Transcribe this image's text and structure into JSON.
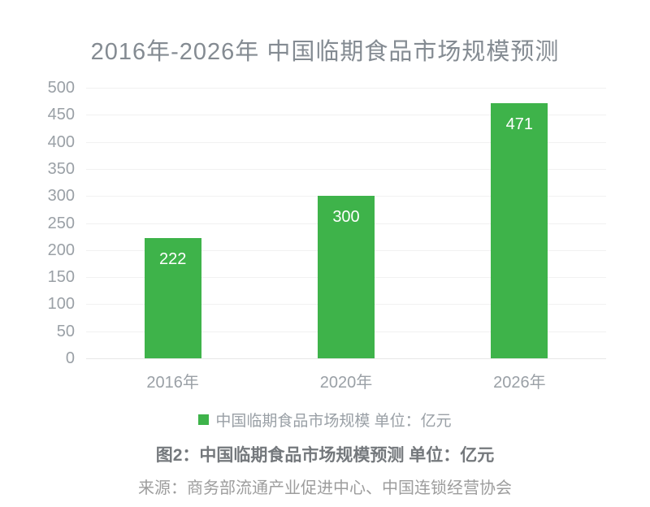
{
  "title": "2016年-2026年 中国临期食品市场规模预测",
  "chart_data": {
    "type": "bar",
    "categories": [
      "2016年",
      "2020年",
      "2026年"
    ],
    "values": [
      222,
      300,
      471
    ],
    "series_name": "中国临期食品市场规模",
    "unit": "亿元",
    "title": "2016年-2026年 中国临期食品市场规模预测",
    "xlabel": "",
    "ylabel": "",
    "ylim": [
      0,
      500
    ],
    "ytick_step": 50,
    "grid": true,
    "legend_position": "bottom",
    "bar_color": "#3eb34a",
    "bar_label_color": "#ffffff"
  },
  "legend": {
    "label": "中国临期食品市场规模 单位：亿元",
    "swatch_color": "#3eb34a"
  },
  "caption": "图2：中国临期食品市场规模预测 单位：亿元",
  "source": "来源：商务部流通产业促进中心、中国连锁经营协会"
}
